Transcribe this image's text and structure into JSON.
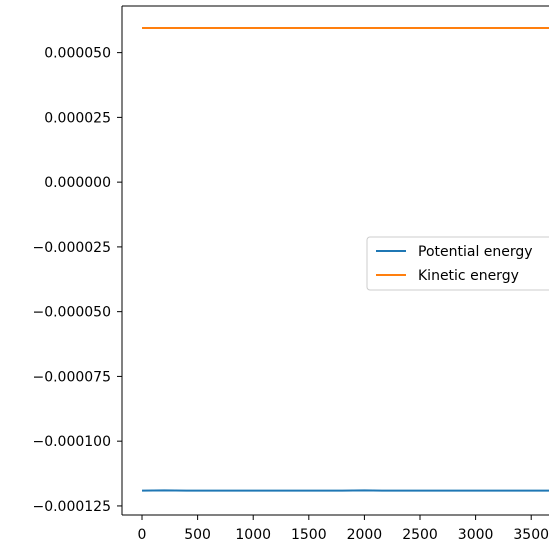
{
  "chart_data": {
    "type": "line",
    "x": [
      0,
      200,
      400,
      600,
      800,
      1000,
      1200,
      1400,
      1600,
      1800,
      2000,
      2200,
      2400,
      2600,
      2800,
      3000,
      3200,
      3400,
      3600,
      3660
    ],
    "series": [
      {
        "name": "Potential energy",
        "color": "#1f77b4",
        "values": [
          -0.0001191,
          -0.000119,
          -0.0001191,
          -0.0001191,
          -0.0001191,
          -0.0001191,
          -0.0001191,
          -0.0001191,
          -0.0001191,
          -0.0001191,
          -0.000119,
          -0.0001191,
          -0.0001191,
          -0.0001191,
          -0.0001191,
          -0.0001191,
          -0.0001191,
          -0.0001191,
          -0.0001191,
          -0.0001191
        ]
      },
      {
        "name": "Kinetic energy",
        "color": "#ff7f0e",
        "values": [
          5.95e-05,
          5.95e-05,
          5.95e-05,
          5.95e-05,
          5.95e-05,
          5.95e-05,
          5.95e-05,
          5.95e-05,
          5.95e-05,
          5.95e-05,
          5.95e-05,
          5.95e-05,
          5.95e-05,
          5.95e-05,
          5.95e-05,
          5.95e-05,
          5.95e-05,
          5.95e-05,
          5.95e-05,
          5.95e-05
        ]
      }
    ],
    "xlim": [
      -180,
      3660
    ],
    "ylim": [
      -0.0001285,
      6.8e-05
    ],
    "xticks": [
      {
        "value": 0,
        "label": "0"
      },
      {
        "value": 500,
        "label": "500"
      },
      {
        "value": 1000,
        "label": "1000"
      },
      {
        "value": 1500,
        "label": "1500"
      },
      {
        "value": 2000,
        "label": "2000"
      },
      {
        "value": 2500,
        "label": "2500"
      },
      {
        "value": 3000,
        "label": "3000"
      },
      {
        "value": 3500,
        "label": "3500"
      }
    ],
    "yticks": [
      {
        "value": 5e-05,
        "label": "0.000050"
      },
      {
        "value": 2.5e-05,
        "label": "0.000025"
      },
      {
        "value": 0,
        "label": "0.000000"
      },
      {
        "value": -2.5e-05,
        "label": "−0.000025"
      },
      {
        "value": -5e-05,
        "label": "−0.000050"
      },
      {
        "value": -7.5e-05,
        "label": "−0.000075"
      },
      {
        "value": -0.0001,
        "label": "−0.000100"
      },
      {
        "value": -0.000125,
        "label": "−0.000125"
      }
    ],
    "title": "",
    "xlabel": "",
    "ylabel": "",
    "grid": false,
    "legend_position": "center-right"
  }
}
